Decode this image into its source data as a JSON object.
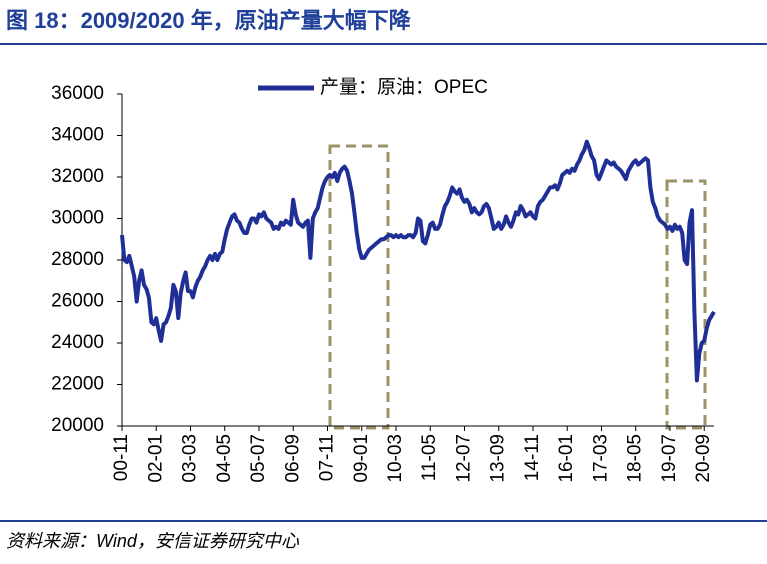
{
  "chart_data": {
    "type": "line",
    "title": "图 18：2009/2020 年，原油产量大幅下降",
    "source": "资料来源：Wind，安信证券研究中心",
    "categories": [
      "00-11",
      null,
      null,
      null,
      null,
      null,
      null,
      null,
      null,
      null,
      null,
      null,
      null,
      null,
      "02-01",
      null,
      null,
      null,
      null,
      null,
      null,
      null,
      null,
      null,
      null,
      null,
      null,
      null,
      "03-03",
      null,
      null,
      null,
      null,
      null,
      null,
      null,
      null,
      null,
      null,
      null,
      null,
      null,
      "04-05",
      null,
      null,
      null,
      null,
      null,
      null,
      null,
      null,
      null,
      null,
      null,
      null,
      null,
      "05-07",
      null,
      null,
      null,
      null,
      null,
      null,
      null,
      null,
      null,
      null,
      null,
      null,
      null,
      "06-09",
      null,
      null,
      null,
      null,
      null,
      null,
      null,
      null,
      null,
      null,
      null,
      null,
      null,
      "07-11",
      null,
      null,
      null,
      null,
      null,
      null,
      null,
      null,
      null,
      null,
      null,
      null,
      null,
      "09-01",
      null,
      null,
      null,
      null,
      null,
      null,
      null,
      null,
      null,
      null,
      null,
      null,
      null,
      "10-03",
      null,
      null,
      null,
      null,
      null,
      null,
      null,
      null,
      null,
      null,
      null,
      null,
      null,
      "11-05",
      null,
      null,
      null,
      null,
      null,
      null,
      null,
      null,
      null,
      null,
      null,
      null,
      null,
      "12-07",
      null,
      null,
      null,
      null,
      null,
      null,
      null,
      null,
      null,
      null,
      null,
      null,
      null,
      "13-09",
      null,
      null,
      null,
      null,
      null,
      null,
      null,
      null,
      null,
      null,
      null,
      null,
      null,
      "14-11",
      null,
      null,
      null,
      null,
      null,
      null,
      null,
      null,
      null,
      null,
      null,
      null,
      null,
      "16-01",
      null,
      null,
      null,
      null,
      null,
      null,
      null,
      null,
      null,
      null,
      null,
      null,
      null,
      "17-03",
      null,
      null,
      null,
      null,
      null,
      null,
      null,
      null,
      null,
      null,
      null,
      null,
      null,
      "18-05",
      null,
      null,
      null,
      null,
      null,
      null,
      null,
      null,
      null,
      null,
      null,
      null,
      null,
      "19-07",
      null,
      null,
      null,
      null,
      null,
      null,
      null,
      null,
      null,
      null,
      null,
      null,
      null,
      "20-09",
      null,
      null,
      null,
      null
    ],
    "series": [
      {
        "name": "产量：原油：OPEC",
        "color": "#1f2f96",
        "values": [
          29200,
          28000,
          27900,
          28200,
          27700,
          27200,
          26000,
          27000,
          27500,
          26800,
          26600,
          26200,
          25000,
          24900,
          25200,
          24600,
          24100,
          24900,
          25000,
          25300,
          25700,
          26800,
          26500,
          25200,
          26400,
          27000,
          27400,
          26500,
          26500,
          26200,
          26700,
          27000,
          27200,
          27500,
          27700,
          28000,
          28200,
          28000,
          28300,
          28000,
          28300,
          28400,
          29000,
          29500,
          29800,
          30100,
          30200,
          29900,
          29800,
          29500,
          29300,
          29300,
          29700,
          30000,
          30000,
          29800,
          30200,
          30100,
          30300,
          30000,
          29900,
          29800,
          29500,
          29600,
          29500,
          29800,
          29700,
          29900,
          29800,
          29700,
          30900,
          30200,
          29800,
          29700,
          29600,
          29800,
          29900,
          28100,
          30000,
          30300,
          30500,
          31000,
          31500,
          31800,
          32000,
          32100,
          32000,
          32200,
          31800,
          32200,
          32400,
          32500,
          32300,
          31800,
          31200,
          30300,
          29300,
          28500,
          28100,
          28100,
          28300,
          28500,
          28600,
          28700,
          28800,
          28900,
          29000,
          29000,
          29100,
          29200,
          29200,
          29100,
          29200,
          29100,
          29200,
          29100,
          29100,
          29200,
          29200,
          29100,
          29300,
          30000,
          29900,
          28900,
          28800,
          29200,
          29700,
          29800,
          29500,
          29500,
          29700,
          30200,
          30600,
          30800,
          31100,
          31500,
          31300,
          31200,
          31400,
          31000,
          30800,
          30900,
          30700,
          30300,
          30500,
          30300,
          30200,
          30300,
          30600,
          30700,
          30500,
          30000,
          29500,
          29600,
          29800,
          29500,
          29700,
          30100,
          29800,
          29600,
          29900,
          30300,
          30200,
          30600,
          30400,
          30100,
          30200,
          30300,
          30100,
          30000,
          30600,
          30800,
          30900,
          31100,
          31300,
          31500,
          31500,
          31600,
          31400,
          31700,
          32100,
          32200,
          32300,
          32200,
          32400,
          32300,
          32600,
          32800,
          33100,
          33300,
          33700,
          33400,
          33000,
          32800,
          32100,
          31900,
          32200,
          32500,
          32800,
          32700,
          32600,
          32700,
          32500,
          32400,
          32300,
          32100,
          31900,
          32300,
          32500,
          32700,
          32800,
          32600,
          32700,
          32800,
          32900,
          32800,
          31500,
          30800,
          30500,
          30100,
          29900,
          29800,
          29700,
          29500,
          29600,
          29400,
          29700,
          29500,
          29600,
          29300,
          28000,
          27800,
          29800,
          30400,
          25500,
          22200,
          23500,
          24000,
          24100,
          24700,
          25100,
          25300,
          25500
        ]
      }
    ],
    "ylim": [
      20000,
      36000
    ],
    "yticks": [
      20000,
      22000,
      24000,
      26000,
      28000,
      30000,
      32000,
      34000,
      36000
    ],
    "legend": "top"
  }
}
